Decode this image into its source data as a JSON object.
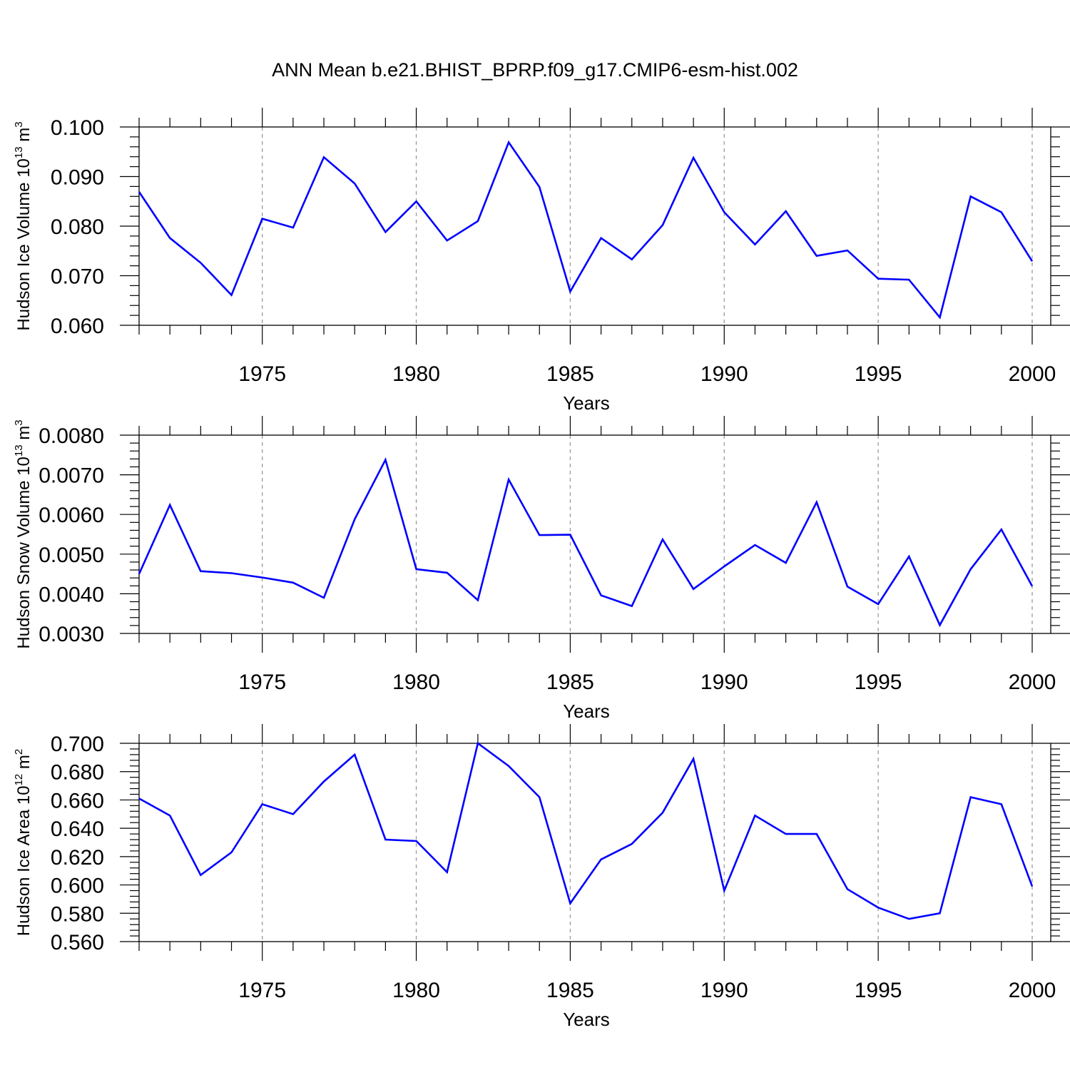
{
  "title": "ANN Mean b.e21.BHIST_BPRP.f09_g17.CMIP6-esm-hist.002",
  "colors": {
    "line": "#0000ff",
    "axis": "#000000",
    "grid": "#9a9a9a"
  },
  "chart_data": [
    {
      "type": "line",
      "ylabel": {
        "base": "Hudson Ice Volume 10",
        "exponent": "13",
        "unit": " m",
        "unit_exponent": "3"
      },
      "xlabel": "Years",
      "xlim": [
        1971,
        2000
      ],
      "ylim": [
        0.06,
        0.1
      ],
      "yticks": [
        0.06,
        0.07,
        0.08,
        0.09,
        0.1
      ],
      "ytick_labels": [
        "0.060",
        "0.070",
        "0.080",
        "0.090",
        "0.100"
      ],
      "xticks": [
        1975,
        1980,
        1985,
        1990,
        1995,
        2000
      ],
      "xtick_labels": [
        "1975",
        "1980",
        "1985",
        "1990",
        "1995",
        "2000"
      ],
      "x": [
        1971,
        1972,
        1973,
        1974,
        1975,
        1976,
        1977,
        1978,
        1979,
        1980,
        1981,
        1982,
        1983,
        1984,
        1985,
        1986,
        1987,
        1988,
        1989,
        1990,
        1991,
        1992,
        1993,
        1994,
        1995,
        1996,
        1997,
        1998,
        1999,
        2000
      ],
      "values": [
        0.0869,
        0.0776,
        0.0726,
        0.0661,
        0.0815,
        0.0797,
        0.0939,
        0.0886,
        0.0788,
        0.085,
        0.0771,
        0.081,
        0.0969,
        0.0879,
        0.0668,
        0.0776,
        0.0733,
        0.0802,
        0.0938,
        0.0828,
        0.0763,
        0.083,
        0.074,
        0.0751,
        0.0694,
        0.0692,
        0.0616,
        0.086,
        0.0828,
        0.0729
      ],
      "grid": "vertical-dashed"
    },
    {
      "type": "line",
      "ylabel": {
        "base": "Hudson Snow Volume 10",
        "exponent": "13",
        "unit": " m",
        "unit_exponent": "3"
      },
      "xlabel": "Years",
      "xlim": [
        1971,
        2000
      ],
      "ylim": [
        0.003,
        0.008
      ],
      "yticks": [
        0.003,
        0.004,
        0.005,
        0.006,
        0.007,
        0.008
      ],
      "ytick_labels": [
        "0.0030",
        "0.0040",
        "0.0050",
        "0.0060",
        "0.0070",
        "0.0080"
      ],
      "xticks": [
        1975,
        1980,
        1985,
        1990,
        1995,
        2000
      ],
      "xtick_labels": [
        "1975",
        "1980",
        "1985",
        "1990",
        "1995",
        "2000"
      ],
      "x": [
        1971,
        1972,
        1973,
        1974,
        1975,
        1976,
        1977,
        1978,
        1979,
        1980,
        1981,
        1982,
        1983,
        1984,
        1985,
        1986,
        1987,
        1988,
        1989,
        1990,
        1991,
        1992,
        1993,
        1994,
        1995,
        1996,
        1997,
        1998,
        1999,
        2000
      ],
      "values": [
        0.0045,
        0.00624,
        0.00457,
        0.00452,
        0.00441,
        0.00428,
        0.0039,
        0.00588,
        0.00738,
        0.00462,
        0.00453,
        0.00384,
        0.00688,
        0.00548,
        0.00549,
        0.00396,
        0.00369,
        0.00537,
        0.00412,
        0.00469,
        0.00523,
        0.00478,
        0.00631,
        0.00418,
        0.00374,
        0.00494,
        0.00321,
        0.00462,
        0.00562,
        0.00419
      ],
      "grid": "vertical-dashed"
    },
    {
      "type": "line",
      "ylabel": {
        "base": "Hudson Ice Area 10",
        "exponent": "12",
        "unit": " m",
        "unit_exponent": "2"
      },
      "xlabel": "Years",
      "xlim": [
        1971,
        2000
      ],
      "ylim": [
        0.56,
        0.7
      ],
      "yticks": [
        0.56,
        0.58,
        0.6,
        0.62,
        0.64,
        0.66,
        0.68,
        0.7
      ],
      "ytick_labels": [
        "0.560",
        "0.580",
        "0.600",
        "0.620",
        "0.640",
        "0.660",
        "0.680",
        "0.700"
      ],
      "xticks": [
        1975,
        1980,
        1985,
        1990,
        1995,
        2000
      ],
      "xtick_labels": [
        "1975",
        "1980",
        "1985",
        "1990",
        "1995",
        "2000"
      ],
      "x": [
        1971,
        1972,
        1973,
        1974,
        1975,
        1976,
        1977,
        1978,
        1979,
        1980,
        1981,
        1982,
        1983,
        1984,
        1985,
        1986,
        1987,
        1988,
        1989,
        1990,
        1991,
        1992,
        1993,
        1994,
        1995,
        1996,
        1997,
        1998,
        1999,
        2000
      ],
      "values": [
        0.661,
        0.649,
        0.607,
        0.623,
        0.657,
        0.65,
        0.673,
        0.692,
        0.632,
        0.631,
        0.609,
        0.7,
        0.684,
        0.662,
        0.587,
        0.618,
        0.629,
        0.651,
        0.689,
        0.596,
        0.649,
        0.636,
        0.636,
        0.597,
        0.584,
        0.576,
        0.58,
        0.662,
        0.657,
        0.599
      ],
      "grid": "vertical-dashed"
    }
  ]
}
